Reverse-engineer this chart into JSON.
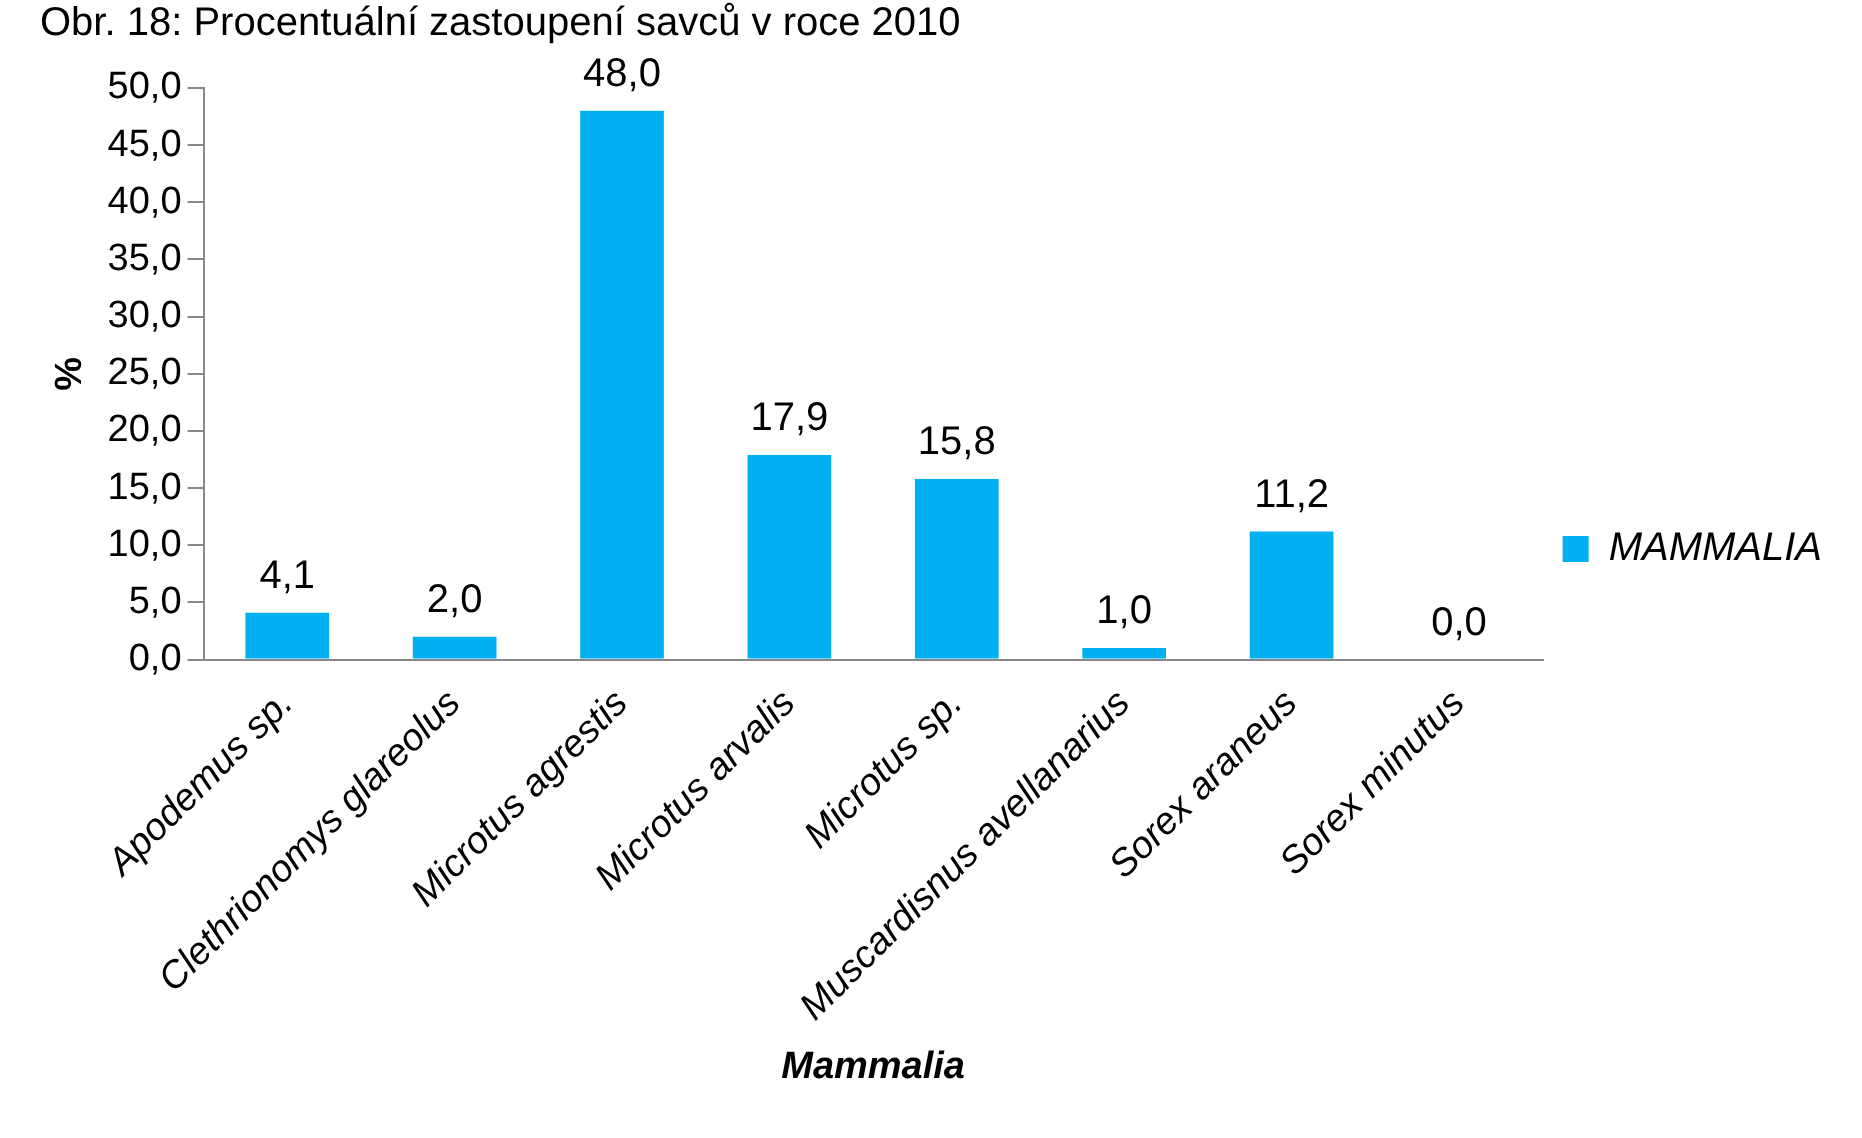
{
  "chart_data": {
    "type": "bar",
    "title": "Obr. 18: Procentuální zastoupení savců v roce 2010",
    "xlabel": "Mammalia",
    "ylabel": "%",
    "categories": [
      "Apodemus sp.",
      "Clethrionomys glareolus",
      "Microtus agrestis",
      "Microtus arvalis",
      "Microtus sp.",
      "Muscardisnus avellanarius",
      "Sorex araneus",
      "Sorex minutus"
    ],
    "series": [
      {
        "name": "MAMMALIA",
        "color": "#00b0f0",
        "values": [
          4.1,
          2.0,
          48.0,
          17.9,
          15.8,
          1.0,
          11.2,
          0.0
        ],
        "value_labels": [
          "4,1",
          "2,0",
          "48,0",
          "17,9",
          "15,8",
          "1,0",
          "11,2",
          "0,0"
        ]
      }
    ],
    "ylim": [
      0,
      50
    ],
    "yticks": [
      {
        "value": 0,
        "label": "0,0"
      },
      {
        "value": 5,
        "label": "5,0"
      },
      {
        "value": 10,
        "label": "10,0"
      },
      {
        "value": 15,
        "label": "15,0"
      },
      {
        "value": 20,
        "label": "20,0"
      },
      {
        "value": 25,
        "label": "25,0"
      },
      {
        "value": 30,
        "label": "30,0"
      },
      {
        "value": 35,
        "label": "35,0"
      },
      {
        "value": 40,
        "label": "40,0"
      },
      {
        "value": 45,
        "label": "45,0"
      },
      {
        "value": 50,
        "label": "50,0"
      }
    ],
    "grid": false,
    "legend": "right"
  }
}
